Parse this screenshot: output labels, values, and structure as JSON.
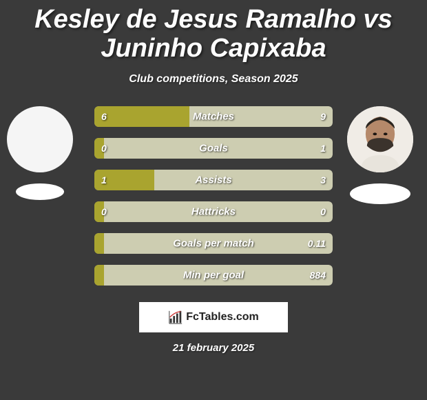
{
  "title": "Kesley de Jesus Ramalho vs Juninho Capixaba",
  "title_fontsize": 38,
  "subtitle": "Club competitions, Season 2025",
  "subtitle_fontsize": 16,
  "left_color": "#a9a42f",
  "right_color": "#cdcdb1",
  "background_color": "#3a3a3a",
  "label_fontsize": 15,
  "value_fontsize": 14,
  "bars": [
    {
      "label": "Matches",
      "left_val": "6",
      "right_val": "9",
      "left_pct": 40
    },
    {
      "label": "Goals",
      "left_val": "0",
      "right_val": "1",
      "left_pct": 4
    },
    {
      "label": "Assists",
      "left_val": "1",
      "right_val": "3",
      "left_pct": 25
    },
    {
      "label": "Hattricks",
      "left_val": "0",
      "right_val": "0",
      "left_pct": 4
    },
    {
      "label": "Goals per match",
      "left_val": "",
      "right_val": "0.11",
      "left_pct": 4
    },
    {
      "label": "Min per goal",
      "left_val": "",
      "right_val": "884",
      "left_pct": 4
    }
  ],
  "watermark": "FcTables.com",
  "date": "21 february 2025",
  "date_fontsize": 15
}
